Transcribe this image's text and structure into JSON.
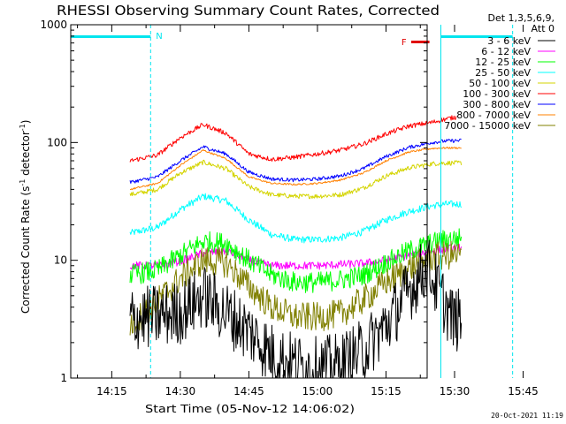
{
  "chart_data": {
    "type": "line",
    "title": "RHESSI Observing Summary Count Rates, Corrected",
    "xlabel": "Start Time (05-Nov-12 14:06:02)",
    "ylabel_parts": [
      "Corrected Count Rate (s",
      "-1",
      " detector",
      "-1",
      ")"
    ],
    "yscale": "log",
    "ylim": [
      1,
      1000
    ],
    "xlim_min": [
      6.03,
      84
    ],
    "x_ticks": [
      {
        "min": 15,
        "label": "14:15"
      },
      {
        "min": 30,
        "label": "14:30"
      },
      {
        "min": 45,
        "label": "14:45"
      },
      {
        "min": 60,
        "label": "15:00"
      },
      {
        "min": 75,
        "label": "15:15"
      },
      {
        "min": 90,
        "label": "15:30"
      },
      {
        "min": 105,
        "label": "15:45"
      }
    ],
    "y_ticks": [
      {
        "value": 1,
        "label": "1"
      },
      {
        "value": 10,
        "label": "10"
      },
      {
        "value": 100,
        "label": "100"
      },
      {
        "value": 1000,
        "label": "1000"
      }
    ],
    "legend_header": [
      "Det 1,3,5,6,9,",
      "Att 0"
    ],
    "legend_position": "right",
    "footer_date": "20-Oct-2021 11:19",
    "night_intervals": [
      [
        6.03,
        23.5
      ],
      [
        87.0,
        102.7
      ]
    ],
    "night_label": "N",
    "flare_label": "F",
    "flare_interval": [
      80.5,
      84.5
    ],
    "vlines_min": [
      6.03,
      23.5,
      87.0,
      102.7
    ],
    "data_range_min": [
      19.0,
      91.5
    ],
    "series": [
      {
        "name": "3 - 6 keV",
        "color": "#000000",
        "noise": 0.55,
        "x": [
          19.0,
          24,
          30,
          35,
          40,
          45,
          50,
          55,
          60,
          65,
          70,
          75,
          80,
          84,
          87,
          89.5,
          91.5
        ],
        "y": [
          3.2,
          3.3,
          3.6,
          5.0,
          3.6,
          2.5,
          1.6,
          1.3,
          1.2,
          1.3,
          1.7,
          2.8,
          5.5,
          9.0,
          5.0,
          3.2,
          3.0
        ]
      },
      {
        "name": "6 - 12 keV",
        "color": "#ff00ff",
        "noise": 0.07,
        "x": [
          19.0,
          25,
          30,
          35,
          40,
          45,
          50,
          55,
          60,
          65,
          70,
          75,
          80,
          85,
          88,
          91.5
        ],
        "y": [
          9.0,
          9.0,
          9.8,
          11.5,
          12.0,
          10.0,
          9.0,
          9.0,
          9.0,
          9.2,
          9.4,
          10.0,
          11.0,
          12.0,
          12.5,
          13.0
        ]
      },
      {
        "name": "12 - 25 keV",
        "color": "#00ff00",
        "noise": 0.18,
        "x": [
          19.0,
          25,
          30,
          35,
          40,
          45,
          50,
          55,
          60,
          65,
          70,
          75,
          80,
          85,
          88,
          91.5
        ],
        "y": [
          7.5,
          8.2,
          11.0,
          14.5,
          14.0,
          10.0,
          7.5,
          6.5,
          6.5,
          6.8,
          7.5,
          9.5,
          12.0,
          14.0,
          15.0,
          15.5
        ]
      },
      {
        "name": "25 - 50 keV",
        "color": "#00ffff",
        "noise": 0.06,
        "x": [
          19.0,
          25,
          30,
          35,
          40,
          45,
          50,
          55,
          60,
          65,
          70,
          75,
          80,
          85,
          88,
          91.5
        ],
        "y": [
          17.0,
          19.0,
          27.0,
          35.0,
          32.0,
          22.0,
          16.5,
          15.0,
          15.0,
          15.5,
          17.5,
          22.0,
          26.0,
          29.0,
          30.0,
          30.0
        ]
      },
      {
        "name": "50 - 100 keV",
        "color": "#d4d400",
        "noise": 0.04,
        "x": [
          19.0,
          25,
          30,
          35,
          40,
          45,
          50,
          55,
          60,
          65,
          70,
          75,
          80,
          85,
          88,
          91.5
        ],
        "y": [
          36.0,
          40.0,
          55.0,
          68.0,
          60.0,
          42.0,
          36.0,
          35.0,
          35.0,
          36.0,
          41.0,
          52.0,
          61.0,
          66.0,
          67.0,
          67.0
        ]
      },
      {
        "name": "100 - 300 keV",
        "color": "#ff0000",
        "noise": 0.04,
        "x": [
          19.0,
          25,
          30,
          35,
          40,
          45,
          50,
          55,
          60,
          65,
          70,
          75,
          80,
          85,
          88,
          90.5
        ],
        "y": [
          70.0,
          78.0,
          110.0,
          142.0,
          120.0,
          80.0,
          72.0,
          75.0,
          80.0,
          86.0,
          97.0,
          118.0,
          138.0,
          148.0,
          158.0,
          165.0
        ]
      },
      {
        "name": "300 - 800 keV",
        "color": "#0000ff",
        "noise": 0.03,
        "x": [
          19.0,
          25,
          30,
          35,
          40,
          45,
          50,
          55,
          60,
          65,
          70,
          75,
          80,
          85,
          88,
          91.5
        ],
        "y": [
          46.0,
          51.0,
          70.0,
          92.0,
          80.0,
          56.0,
          49.0,
          48.0,
          49.0,
          52.0,
          60.0,
          76.0,
          91.0,
          100.0,
          103.0,
          104.0
        ]
      },
      {
        "name": "800 - 7000 keV",
        "color": "#ff8000",
        "noise": 0.015,
        "x": [
          19.0,
          25,
          30,
          35,
          40,
          45,
          50,
          55,
          60,
          65,
          70,
          75,
          80,
          85,
          88,
          91.5
        ],
        "y": [
          40.0,
          45.0,
          64.0,
          86.0,
          73.0,
          51.0,
          45.0,
          44.0,
          45.0,
          48.0,
          55.0,
          70.0,
          83.0,
          89.0,
          90.0,
          90.0
        ]
      },
      {
        "name": "7000 - 15000 keV",
        "color": "#808000",
        "noise": 0.25,
        "x": [
          19.0,
          25,
          30,
          35,
          40,
          45,
          50,
          55,
          60,
          65,
          70,
          75,
          80,
          85,
          88,
          91.5
        ],
        "y": [
          2.8,
          4.5,
          7.0,
          10.0,
          9.5,
          6.0,
          4.0,
          3.3,
          3.3,
          3.5,
          4.6,
          6.5,
          8.5,
          10.5,
          11.0,
          11.0
        ]
      }
    ]
  }
}
